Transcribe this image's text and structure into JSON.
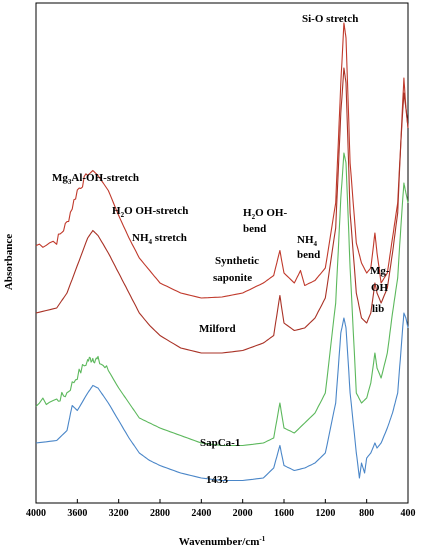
{
  "chart_data": {
    "type": "line",
    "title": "",
    "xlabel": "Wavenumber/cm",
    "xlabel_sup": "-1",
    "ylabel": "Absorbance",
    "xlim": [
      4000,
      400
    ],
    "x_reversed": true,
    "x_ticks": [
      4000,
      3600,
      3200,
      2800,
      2400,
      2000,
      1600,
      1200,
      800,
      400
    ],
    "y_ticks_shown": false,
    "grid": false,
    "legend": "none",
    "annotations": [
      {
        "text": "Si-O stretch"
      },
      {
        "text": "Mg",
        "sub": "3",
        "rest": "Al-OH-stretch"
      },
      {
        "text": "H",
        "sub": "2",
        "rest": "O OH-stretch"
      },
      {
        "text": "NH",
        "sub": "4",
        "rest": " stretch"
      },
      {
        "text": "H",
        "sub": "2",
        "rest": "O OH-"
      },
      {
        "text": "bend"
      },
      {
        "text": "NH",
        "sub": "4",
        "rest": ""
      },
      {
        "text": "bend"
      },
      {
        "text": "Mg-"
      },
      {
        "text": "OH"
      },
      {
        "text": "lib"
      },
      {
        "text": "Synthetic"
      },
      {
        "text": "saponite"
      },
      {
        "text": "Milford"
      },
      {
        "text": "SapCa-1"
      },
      {
        "text": "1433"
      }
    ],
    "series": [
      {
        "name": "Synthetic saponite",
        "color": "#c0392b",
        "noisy_above": 3500,
        "points": [
          [
            4000,
            0.515
          ],
          [
            3800,
            0.525
          ],
          [
            3700,
            0.56
          ],
          [
            3600,
            0.625
          ],
          [
            3500,
            0.655
          ],
          [
            3450,
            0.665
          ],
          [
            3400,
            0.655
          ],
          [
            3300,
            0.625
          ],
          [
            3200,
            0.575
          ],
          [
            3100,
            0.53
          ],
          [
            3000,
            0.49
          ],
          [
            2900,
            0.465
          ],
          [
            2800,
            0.44
          ],
          [
            2600,
            0.42
          ],
          [
            2400,
            0.41
          ],
          [
            2200,
            0.412
          ],
          [
            2000,
            0.42
          ],
          [
            1800,
            0.44
          ],
          [
            1700,
            0.455
          ],
          [
            1640,
            0.505
          ],
          [
            1600,
            0.46
          ],
          [
            1500,
            0.44
          ],
          [
            1440,
            0.465
          ],
          [
            1400,
            0.435
          ],
          [
            1300,
            0.445
          ],
          [
            1200,
            0.47
          ],
          [
            1100,
            0.6
          ],
          [
            1050,
            0.84
          ],
          [
            1020,
            0.96
          ],
          [
            1000,
            0.93
          ],
          [
            960,
            0.68
          ],
          [
            900,
            0.52
          ],
          [
            850,
            0.48
          ],
          [
            800,
            0.46
          ],
          [
            760,
            0.47
          ],
          [
            720,
            0.54
          ],
          [
            700,
            0.5
          ],
          [
            660,
            0.44
          ],
          [
            600,
            0.46
          ],
          [
            550,
            0.53
          ],
          [
            500,
            0.6
          ],
          [
            470,
            0.72
          ],
          [
            440,
            0.85
          ],
          [
            420,
            0.79
          ],
          [
            400,
            0.75
          ]
        ]
      },
      {
        "name": "Milford",
        "color": "#a93226",
        "noisy_above": 0,
        "points": [
          [
            4000,
            0.38
          ],
          [
            3800,
            0.39
          ],
          [
            3700,
            0.42
          ],
          [
            3600,
            0.475
          ],
          [
            3500,
            0.53
          ],
          [
            3450,
            0.545
          ],
          [
            3400,
            0.535
          ],
          [
            3300,
            0.5
          ],
          [
            3200,
            0.46
          ],
          [
            3100,
            0.42
          ],
          [
            3000,
            0.38
          ],
          [
            2900,
            0.355
          ],
          [
            2800,
            0.335
          ],
          [
            2600,
            0.31
          ],
          [
            2400,
            0.3
          ],
          [
            2200,
            0.3
          ],
          [
            2000,
            0.305
          ],
          [
            1800,
            0.32
          ],
          [
            1700,
            0.335
          ],
          [
            1640,
            0.415
          ],
          [
            1600,
            0.36
          ],
          [
            1500,
            0.345
          ],
          [
            1400,
            0.35
          ],
          [
            1300,
            0.37
          ],
          [
            1200,
            0.41
          ],
          [
            1100,
            0.55
          ],
          [
            1050,
            0.78
          ],
          [
            1020,
            0.87
          ],
          [
            1000,
            0.84
          ],
          [
            960,
            0.58
          ],
          [
            900,
            0.42
          ],
          [
            850,
            0.37
          ],
          [
            800,
            0.36
          ],
          [
            760,
            0.38
          ],
          [
            720,
            0.44
          ],
          [
            700,
            0.42
          ],
          [
            660,
            0.4
          ],
          [
            600,
            0.43
          ],
          [
            550,
            0.5
          ],
          [
            500,
            0.58
          ],
          [
            470,
            0.72
          ],
          [
            440,
            0.82
          ],
          [
            420,
            0.79
          ],
          [
            400,
            0.75
          ]
        ]
      },
      {
        "name": "SapCa-1",
        "color": "#5cb85c",
        "noisy_above": 3300,
        "points": [
          [
            4000,
            0.2
          ],
          [
            3800,
            0.205
          ],
          [
            3700,
            0.22
          ],
          [
            3600,
            0.255
          ],
          [
            3500,
            0.285
          ],
          [
            3450,
            0.29
          ],
          [
            3400,
            0.285
          ],
          [
            3300,
            0.265
          ],
          [
            3200,
            0.23
          ],
          [
            3100,
            0.2
          ],
          [
            3000,
            0.17
          ],
          [
            2900,
            0.16
          ],
          [
            2800,
            0.15
          ],
          [
            2600,
            0.135
          ],
          [
            2400,
            0.12
          ],
          [
            2200,
            0.115
          ],
          [
            2000,
            0.115
          ],
          [
            1800,
            0.12
          ],
          [
            1700,
            0.13
          ],
          [
            1640,
            0.2
          ],
          [
            1600,
            0.15
          ],
          [
            1500,
            0.14
          ],
          [
            1400,
            0.16
          ],
          [
            1300,
            0.18
          ],
          [
            1200,
            0.22
          ],
          [
            1100,
            0.4
          ],
          [
            1050,
            0.61
          ],
          [
            1020,
            0.7
          ],
          [
            1000,
            0.68
          ],
          [
            960,
            0.47
          ],
          [
            900,
            0.22
          ],
          [
            850,
            0.2
          ],
          [
            800,
            0.21
          ],
          [
            760,
            0.24
          ],
          [
            720,
            0.3
          ],
          [
            700,
            0.27
          ],
          [
            660,
            0.25
          ],
          [
            600,
            0.3
          ],
          [
            550,
            0.38
          ],
          [
            500,
            0.45
          ],
          [
            470,
            0.55
          ],
          [
            440,
            0.64
          ],
          [
            420,
            0.62
          ],
          [
            400,
            0.6
          ]
        ]
      },
      {
        "name": "1433",
        "color": "#4a86c8",
        "noisy_above": 0,
        "points": [
          [
            4000,
            0.12
          ],
          [
            3800,
            0.125
          ],
          [
            3700,
            0.145
          ],
          [
            3650,
            0.195
          ],
          [
            3600,
            0.185
          ],
          [
            3500,
            0.22
          ],
          [
            3450,
            0.235
          ],
          [
            3400,
            0.23
          ],
          [
            3300,
            0.2
          ],
          [
            3200,
            0.165
          ],
          [
            3100,
            0.13
          ],
          [
            3000,
            0.1
          ],
          [
            2900,
            0.085
          ],
          [
            2800,
            0.075
          ],
          [
            2600,
            0.06
          ],
          [
            2400,
            0.05
          ],
          [
            2200,
            0.045
          ],
          [
            2000,
            0.045
          ],
          [
            1800,
            0.05
          ],
          [
            1700,
            0.07
          ],
          [
            1640,
            0.115
          ],
          [
            1600,
            0.075
          ],
          [
            1500,
            0.065
          ],
          [
            1400,
            0.07
          ],
          [
            1300,
            0.08
          ],
          [
            1200,
            0.1
          ],
          [
            1100,
            0.2
          ],
          [
            1050,
            0.34
          ],
          [
            1020,
            0.37
          ],
          [
            1000,
            0.35
          ],
          [
            960,
            0.22
          ],
          [
            900,
            0.1
          ],
          [
            870,
            0.05
          ],
          [
            850,
            0.08
          ],
          [
            820,
            0.06
          ],
          [
            800,
            0.09
          ],
          [
            760,
            0.1
          ],
          [
            720,
            0.12
          ],
          [
            700,
            0.11
          ],
          [
            660,
            0.12
          ],
          [
            600,
            0.15
          ],
          [
            550,
            0.18
          ],
          [
            500,
            0.22
          ],
          [
            470,
            0.3
          ],
          [
            440,
            0.38
          ],
          [
            420,
            0.37
          ],
          [
            400,
            0.35
          ]
        ]
      }
    ]
  }
}
